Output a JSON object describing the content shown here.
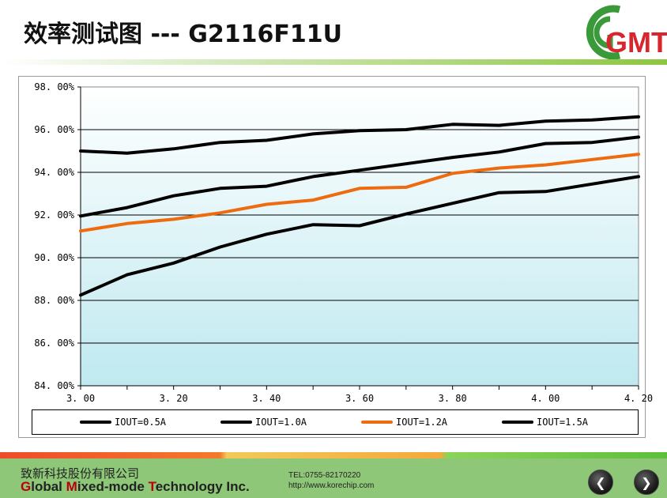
{
  "header": {
    "title": "效率测试图  ---  G2116F11U",
    "logo_text": "GMT"
  },
  "colors": {
    "black_series": "#000000",
    "orange_series": "#ee6b0f",
    "plot_bg_top": "#ffffff",
    "plot_bg_bottom": "#bfe9f0",
    "brand_green": "#7cc04a"
  },
  "chart_data": {
    "type": "line",
    "title": "",
    "xlabel": "",
    "ylabel": "",
    "xlim": [
      3.0,
      4.2
    ],
    "ylim": [
      84,
      98
    ],
    "x_ticks": [
      3.0,
      3.2,
      3.4,
      3.6,
      3.8,
      4.0,
      4.2
    ],
    "x_tick_labels": [
      "3. 00",
      "3. 20",
      "3. 40",
      "3. 60",
      "3. 80",
      "4. 00",
      "4. 20"
    ],
    "y_ticks": [
      84,
      86,
      88,
      90,
      92,
      94,
      96,
      98
    ],
    "y_tick_labels": [
      "84. 00%",
      "86. 00%",
      "88. 00%",
      "90. 00%",
      "92. 00%",
      "94. 00%",
      "96. 00%",
      "98. 00%"
    ],
    "grid": "horizontal",
    "legend_position": "bottom",
    "x": [
      3.0,
      3.1,
      3.2,
      3.3,
      3.4,
      3.5,
      3.6,
      3.7,
      3.8,
      3.9,
      4.0,
      4.1,
      4.2
    ],
    "series": [
      {
        "name": "IOUT=0.5A",
        "color": "#000000",
        "values": [
          95.0,
          94.9,
          95.1,
          95.4,
          95.5,
          95.8,
          95.95,
          96.0,
          96.25,
          96.2,
          96.4,
          96.45,
          96.6
        ]
      },
      {
        "name": "IOUT=1.0A",
        "color": "#000000",
        "values": [
          91.95,
          92.35,
          92.9,
          93.25,
          93.35,
          93.8,
          94.1,
          94.4,
          94.7,
          94.95,
          95.35,
          95.4,
          95.65
        ]
      },
      {
        "name": "IOUT=1.2A",
        "color": "#ee6b0f",
        "values": [
          91.25,
          91.6,
          91.8,
          92.1,
          92.5,
          92.7,
          93.25,
          93.3,
          93.95,
          94.2,
          94.35,
          94.6,
          94.85
        ]
      },
      {
        "name": "IOUT=1.5A",
        "color": "#000000",
        "values": [
          88.25,
          89.2,
          89.75,
          90.5,
          91.1,
          91.55,
          91.5,
          92.05,
          92.55,
          93.05,
          93.1,
          93.45,
          93.8
        ]
      }
    ]
  },
  "footer": {
    "company_cn": "致新科技股份有限公司",
    "company_en": {
      "w1_initial": "G",
      "w1_rest": "lobal ",
      "w2_initial": "M",
      "w2_rest": "ixed-mode ",
      "w3_initial": "T",
      "w3_rest": "echnology Inc."
    },
    "tel": "TEL:0755-82170220",
    "url": "http://www.korechip.com",
    "prev_glyph": "❮",
    "next_glyph": "❯"
  }
}
